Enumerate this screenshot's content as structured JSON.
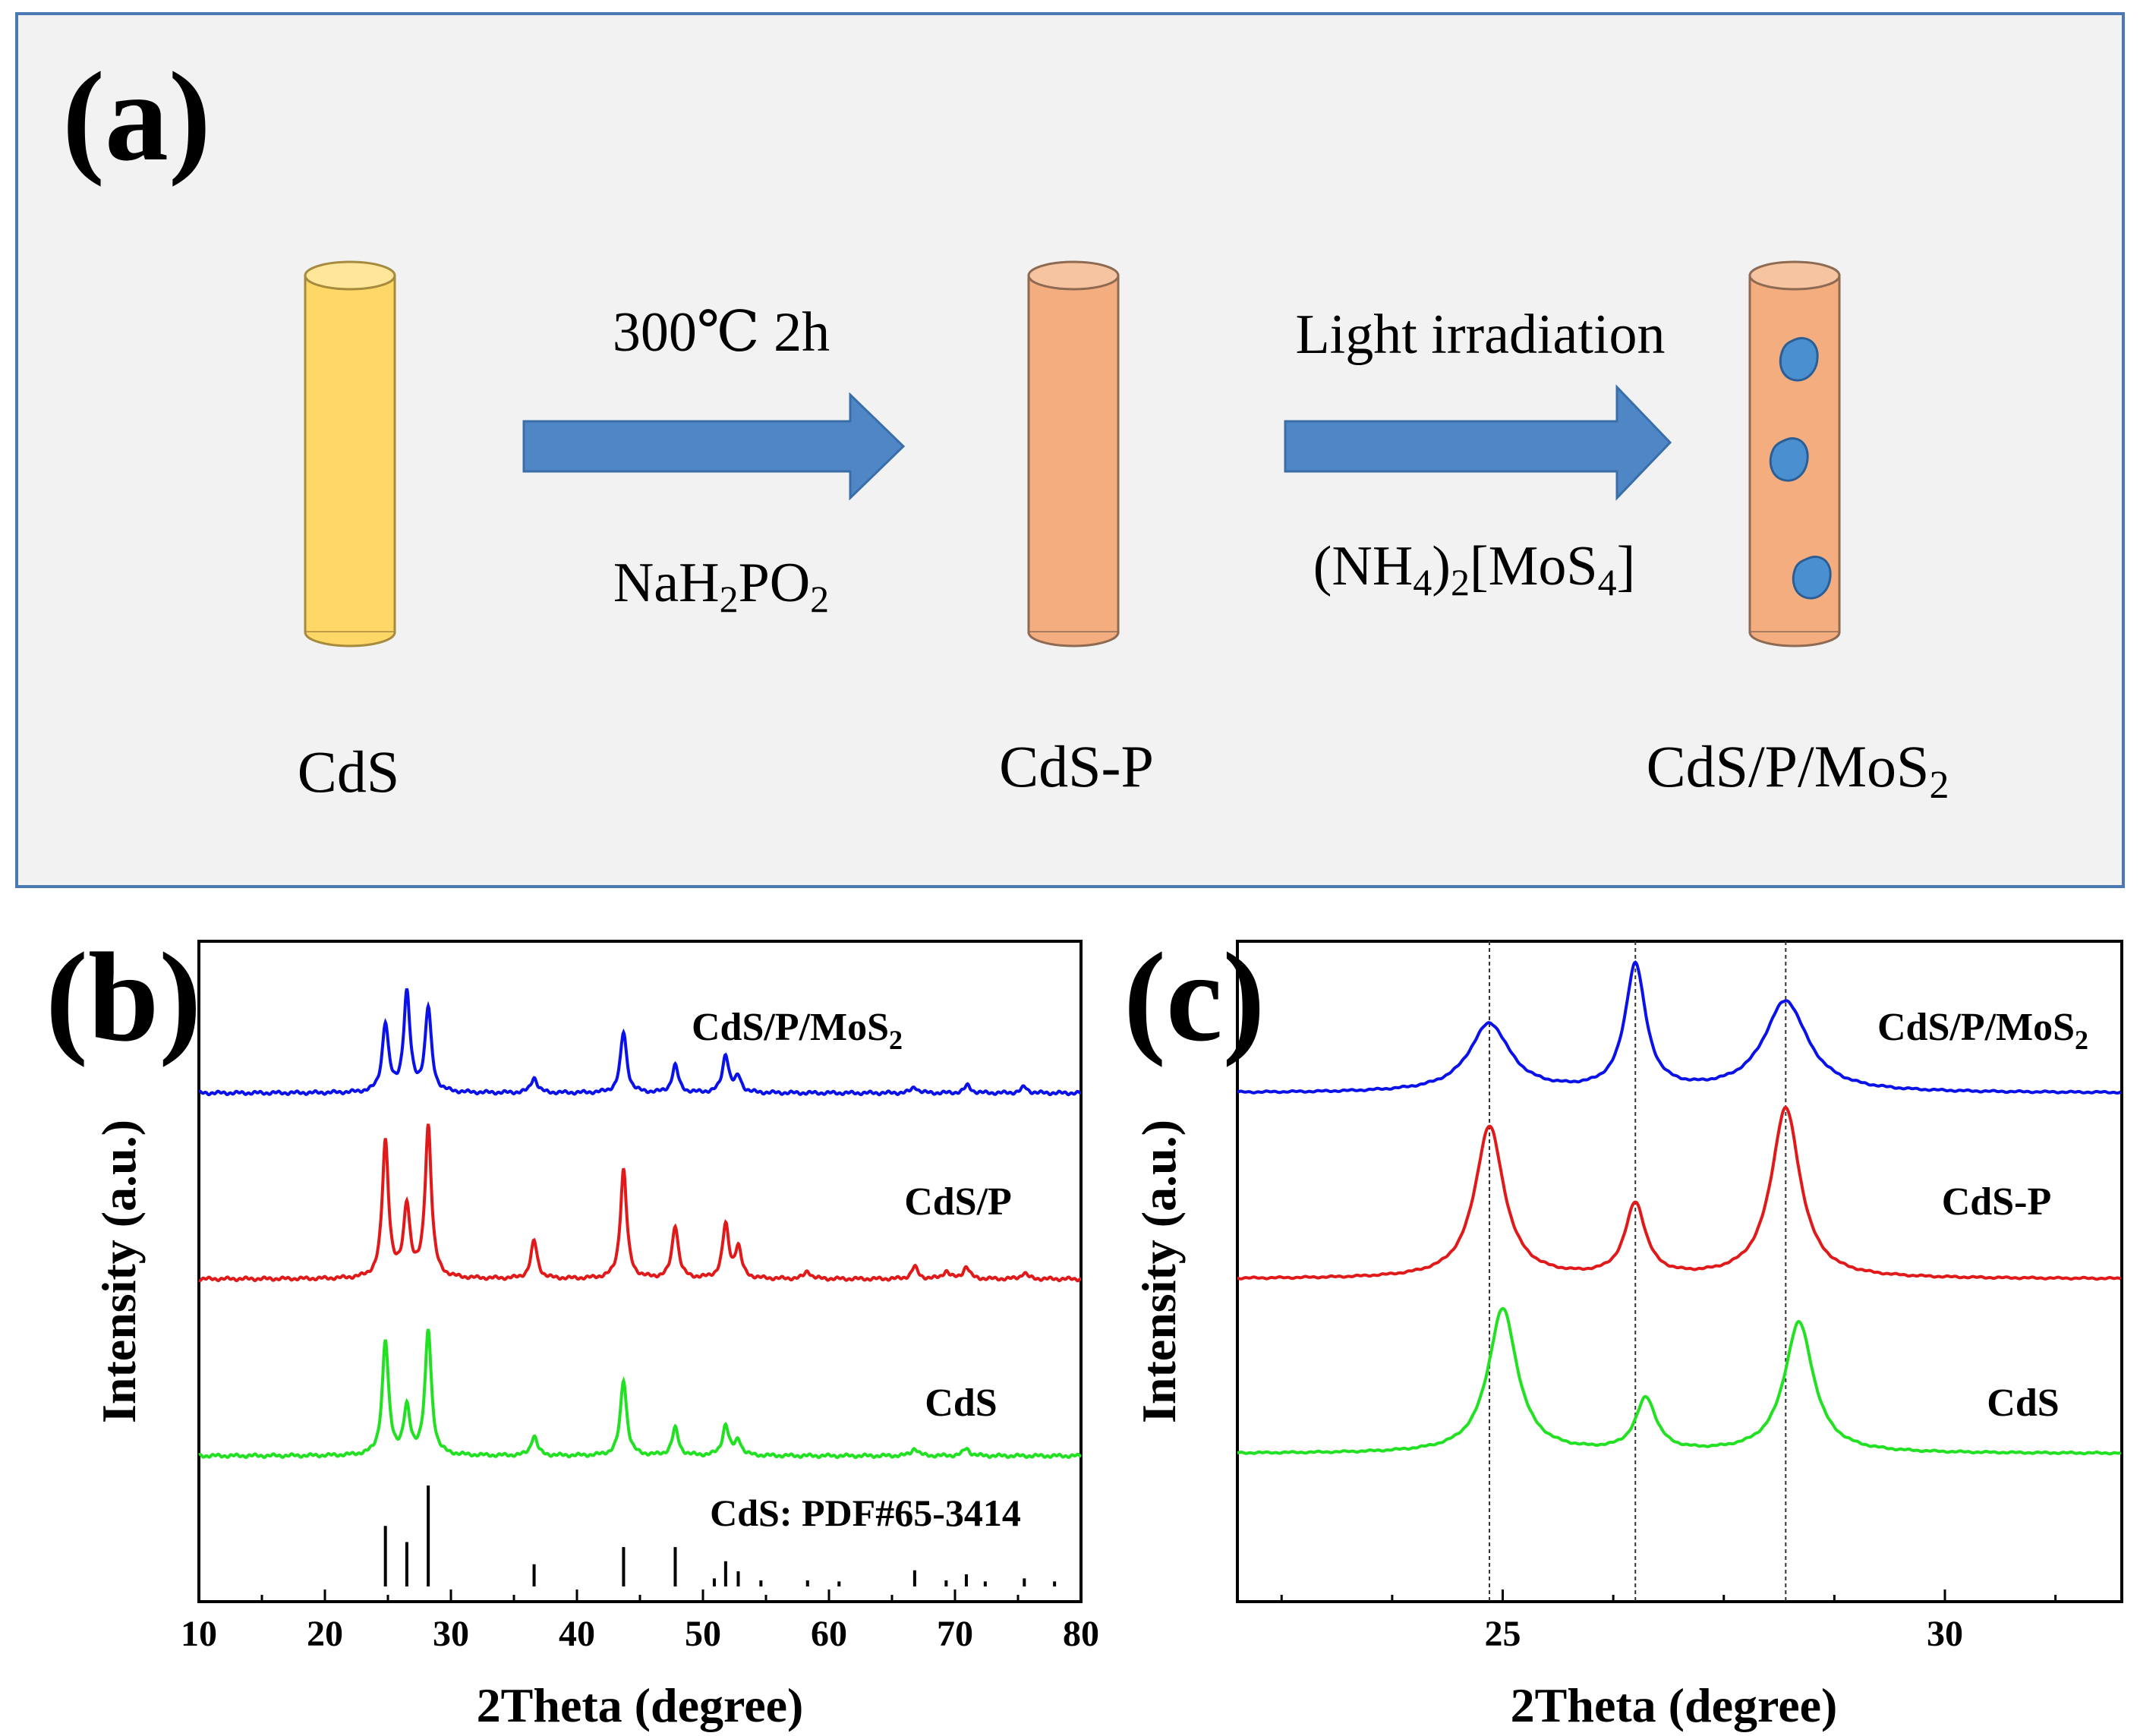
{
  "panel_a": {
    "label": "(a)",
    "step1_top": "300℃ 2h",
    "step1_bottom": {
      "base": "NaH",
      "s1": "2",
      "mid": "PO",
      "s2": "2"
    },
    "step2_top": "Light irradiation",
    "step2_bottom": {
      "p1": "(NH",
      "s1": "4",
      "p2": ")",
      "s2": "2",
      "p3": "[MoS",
      "s3": "4",
      "p4": "]"
    },
    "name_cds": "CdS",
    "name_cdsp": "CdS-P",
    "name_final": {
      "base": "CdS/P/MoS",
      "sub": "2"
    },
    "colors": {
      "cds": "#FFD766",
      "cdsp": "#F4AD7F",
      "mos2": "#4A8FD0",
      "arrow": "#4E86C6",
      "box_fill": "#F2F2F2",
      "box_stroke": "#4A79B3"
    }
  },
  "chart_data": [
    {
      "type": "line",
      "panel": "(b)",
      "xlabel": "2Theta (degree)",
      "ylabel": "Intensity (a.u.)",
      "xlim": [
        10,
        80
      ],
      "xticks": [
        10,
        20,
        30,
        40,
        50,
        60,
        70,
        80
      ],
      "yticks_shown": false,
      "series": [
        {
          "name": "CdS/P/MoS2",
          "label_base": "CdS/P/MoS",
          "label_sub": "2",
          "color": "#0B12E8",
          "peaks": [
            [
              24.8,
              0.45
            ],
            [
              26.5,
              0.65
            ],
            [
              28.2,
              0.55
            ],
            [
              36.6,
              0.1
            ],
            [
              43.7,
              0.4
            ],
            [
              47.8,
              0.18
            ],
            [
              51.8,
              0.25
            ],
            [
              52.8,
              0.1
            ],
            [
              66.8,
              0.04
            ],
            [
              71.0,
              0.05
            ],
            [
              75.5,
              0.04
            ]
          ]
        },
        {
          "name": "CdS/P",
          "label_base": "CdS/P",
          "label_sub": "",
          "color": "#E01A1A",
          "peaks": [
            [
              24.8,
              0.9
            ],
            [
              26.5,
              0.47
            ],
            [
              28.2,
              1.0
            ],
            [
              36.6,
              0.25
            ],
            [
              43.7,
              0.72
            ],
            [
              47.8,
              0.35
            ],
            [
              51.8,
              0.35
            ],
            [
              52.8,
              0.2
            ],
            [
              58.3,
              0.05
            ],
            [
              66.8,
              0.08
            ],
            [
              69.3,
              0.05
            ],
            [
              70.9,
              0.08
            ],
            [
              75.5,
              0.04
            ]
          ]
        },
        {
          "name": "CdS",
          "label_base": "CdS",
          "label_sub": "",
          "color": "#22E022",
          "peaks": [
            [
              24.8,
              0.75
            ],
            [
              26.5,
              0.3
            ],
            [
              28.2,
              0.82
            ],
            [
              36.6,
              0.13
            ],
            [
              43.7,
              0.5
            ],
            [
              47.8,
              0.18
            ],
            [
              51.8,
              0.2
            ],
            [
              52.8,
              0.1
            ],
            [
              66.8,
              0.05
            ],
            [
              70.9,
              0.05
            ]
          ]
        }
      ],
      "reference": {
        "label": "CdS: PDF#65-3414",
        "color": "#000000",
        "lines": [
          [
            24.8,
            0.6
          ],
          [
            26.5,
            0.44
          ],
          [
            28.2,
            1.0
          ],
          [
            36.6,
            0.22
          ],
          [
            43.7,
            0.39
          ],
          [
            47.8,
            0.39
          ],
          [
            50.9,
            0.08
          ],
          [
            51.8,
            0.25
          ],
          [
            52.8,
            0.15
          ],
          [
            54.6,
            0.06
          ],
          [
            58.3,
            0.06
          ],
          [
            60.8,
            0.05
          ],
          [
            66.8,
            0.16
          ],
          [
            69.3,
            0.06
          ],
          [
            70.9,
            0.12
          ],
          [
            72.4,
            0.05
          ],
          [
            75.5,
            0.08
          ],
          [
            77.9,
            0.05
          ]
        ]
      }
    },
    {
      "type": "line",
      "panel": "(c)",
      "xlabel": "2Theta (degree)",
      "ylabel": "Intensity (a.u.)",
      "xlim": [
        22,
        32
      ],
      "xticks": [
        25,
        30
      ],
      "xticks_minor_step": 1.25,
      "guide_lines_x": [
        24.85,
        26.5,
        28.2
      ],
      "series": [
        {
          "name": "CdS/P/MoS2",
          "label_base": "CdS/P/MoS",
          "label_sub": "2",
          "color": "#0B12E8",
          "peaks": [
            [
              24.85,
              0.45,
              0.28
            ],
            [
              26.5,
              0.83,
              0.14
            ],
            [
              28.2,
              0.6,
              0.3
            ]
          ]
        },
        {
          "name": "CdS-P",
          "label_base": "CdS-P",
          "label_sub": "",
          "color": "#E01A1A",
          "peaks": [
            [
              24.85,
              1.0,
              0.2
            ],
            [
              26.5,
              0.48,
              0.14
            ],
            [
              28.2,
              1.12,
              0.2
            ]
          ]
        },
        {
          "name": "CdS",
          "label_base": "CdS",
          "label_sub": "",
          "color": "#22E022",
          "peaks": [
            [
              25.0,
              0.95,
              0.2
            ],
            [
              26.62,
              0.35,
              0.14
            ],
            [
              28.35,
              0.86,
              0.2
            ]
          ]
        }
      ]
    }
  ]
}
